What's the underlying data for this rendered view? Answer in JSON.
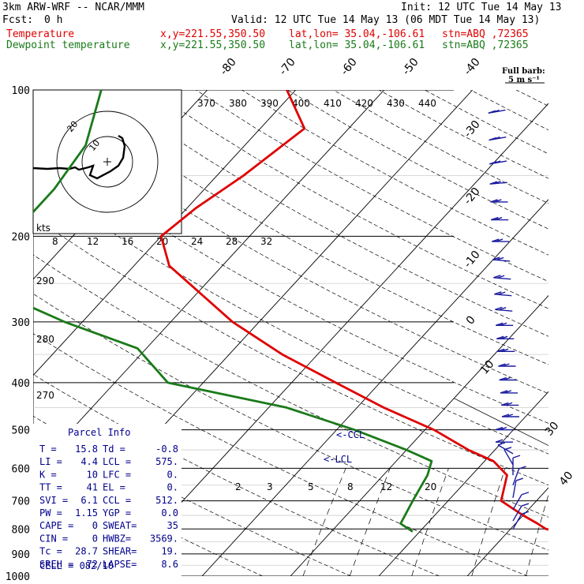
{
  "header": {
    "model": "3km ARW-WRF -- NCAR/MMM",
    "init": "Init: 12 UTC Tue 14 May 13",
    "fcst_label": "Fcst:",
    "fcst_value": "0 h",
    "valid": "Valid: 12 UTC Tue 14 May 13 (06 MDT Tue 14 May 13)",
    "temperature_label": "Temperature",
    "dewpoint_label": "Dewpoint temperature",
    "xy": "x,y=221.55,350.50",
    "latlon": "lat,lon= 35.04,-106.61",
    "station": "stn=ABQ ,72365",
    "full_barb_label": "Full barb:",
    "full_barb_value": "5 m s⁻¹"
  },
  "parcel_info": {
    "title": "Parcel Info",
    "rows": [
      [
        "T  =",
        "15.8",
        "Td =",
        "-0.8"
      ],
      [
        "LI =",
        "4.4",
        "LCL =",
        "575."
      ],
      [
        "K  =",
        "10",
        "LFC =",
        "0."
      ],
      [
        "TT =",
        "41",
        "EL =",
        "0."
      ],
      [
        "SVI =",
        "6.1",
        "CCL =",
        "512."
      ],
      [
        "PW =",
        "1.15",
        "YGP =",
        "0.0"
      ],
      [
        "CAPE =",
        "0",
        "SWEAT=",
        "35"
      ],
      [
        "CIN =",
        "0",
        "HWBZ=",
        "3569."
      ],
      [
        "Tc =",
        "28.7",
        "SHEAR=",
        "19."
      ],
      [
        "SREH =",
        "72",
        "LAPSE=",
        "8.6"
      ]
    ],
    "cell": "CELL = 082/10"
  },
  "ccl_label": "<-CCL",
  "lcl_label": "<-LCL",
  "hodograph": {
    "units": "kts",
    "ring_labels": [
      "20",
      "10"
    ]
  },
  "colors": {
    "temperature": "#e00000",
    "dewpoint": "#1a7a1a",
    "barbs": "#1a1aa0",
    "annotation": "#00008b"
  },
  "chart_data": {
    "type": "line",
    "y_axis": {
      "pressure_levels": [
        100,
        200,
        300,
        400,
        500,
        600,
        700,
        800,
        900,
        1000
      ],
      "scale": "log",
      "range": [
        1000,
        100
      ]
    },
    "isotherm_labels": [
      "-80",
      "-70",
      "-60",
      "-50",
      "-40",
      "-30",
      "-20",
      "-10",
      "0",
      "10",
      "30",
      "40"
    ],
    "theta_labels": [
      "370",
      "380",
      "390",
      "400",
      "410",
      "420",
      "430",
      "440"
    ],
    "theta_side_labels": [
      "290",
      "280",
      "270"
    ],
    "wind_speed_scale": [
      "8",
      "12",
      "16",
      "20",
      "24",
      "28",
      "32"
    ],
    "mixing_ratio_labels": [
      "2",
      "3",
      "5",
      "8",
      "12",
      "20"
    ],
    "series": [
      {
        "name": "Temperature",
        "points": [
          [
            100,
            -61
          ],
          [
            120,
            -55
          ],
          [
            150,
            -57
          ],
          [
            175,
            -59
          ],
          [
            200,
            -60
          ],
          [
            230,
            -56
          ],
          [
            260,
            -50
          ],
          [
            300,
            -43
          ],
          [
            350,
            -34
          ],
          [
            400,
            -25
          ],
          [
            450,
            -17
          ],
          [
            500,
            -9
          ],
          [
            550,
            -3
          ],
          [
            580,
            1
          ],
          [
            620,
            4
          ],
          [
            700,
            6
          ],
          [
            750,
            10
          ],
          [
            780,
            12.5
          ],
          [
            800,
            14
          ],
          [
            810,
            15.8
          ]
        ]
      },
      {
        "name": "Dewpoint temperature",
        "points": [
          [
            100,
            -82
          ],
          [
            130,
            -78
          ],
          [
            160,
            -77
          ],
          [
            200,
            -77
          ],
          [
            230,
            -78
          ],
          [
            245,
            -77
          ],
          [
            270,
            -70
          ],
          [
            300,
            -62
          ],
          [
            340,
            -51
          ],
          [
            400,
            -44
          ],
          [
            450,
            -28
          ],
          [
            500,
            -18
          ],
          [
            550,
            -10
          ],
          [
            580,
            -6
          ],
          [
            620,
            -5
          ],
          [
            700,
            -4
          ],
          [
            780,
            -3
          ],
          [
            810,
            -0.8
          ]
        ]
      }
    ],
    "wind_profile": {
      "note": "wind barbs along right side, full barb = 5 m/s",
      "barbs": [
        {
          "p": 110,
          "spd": 10,
          "dir": 280
        },
        {
          "p": 125,
          "spd": 10,
          "dir": 280
        },
        {
          "p": 140,
          "spd": 10,
          "dir": 280
        },
        {
          "p": 155,
          "spd": 10,
          "dir": 275
        },
        {
          "p": 170,
          "spd": 10,
          "dir": 270
        },
        {
          "p": 185,
          "spd": 10,
          "dir": 270
        },
        {
          "p": 205,
          "spd": 10,
          "dir": 270
        },
        {
          "p": 225,
          "spd": 10,
          "dir": 265
        },
        {
          "p": 245,
          "spd": 10,
          "dir": 265
        },
        {
          "p": 265,
          "spd": 10,
          "dir": 265
        },
        {
          "p": 285,
          "spd": 10,
          "dir": 265
        },
        {
          "p": 305,
          "spd": 10,
          "dir": 270
        },
        {
          "p": 325,
          "spd": 10,
          "dir": 270
        },
        {
          "p": 345,
          "spd": 10,
          "dir": 270
        },
        {
          "p": 370,
          "spd": 10,
          "dir": 270
        },
        {
          "p": 395,
          "spd": 10,
          "dir": 270
        },
        {
          "p": 420,
          "spd": 10,
          "dir": 270
        },
        {
          "p": 445,
          "spd": 10,
          "dir": 270
        },
        {
          "p": 470,
          "spd": 10,
          "dir": 270
        },
        {
          "p": 500,
          "spd": 10,
          "dir": 270
        },
        {
          "p": 530,
          "spd": 5,
          "dir": 270
        },
        {
          "p": 560,
          "spd": 5,
          "dir": 240
        },
        {
          "p": 590,
          "spd": 5,
          "dir": 210
        },
        {
          "p": 620,
          "spd": 5,
          "dir": 180
        },
        {
          "p": 650,
          "spd": 5,
          "dir": 160
        },
        {
          "p": 690,
          "spd": 5,
          "dir": 170
        },
        {
          "p": 730,
          "spd": 5,
          "dir": 150
        },
        {
          "p": 770,
          "spd": 5,
          "dir": 150
        },
        {
          "p": 800,
          "spd": 5,
          "dir": 150
        }
      ]
    }
  }
}
